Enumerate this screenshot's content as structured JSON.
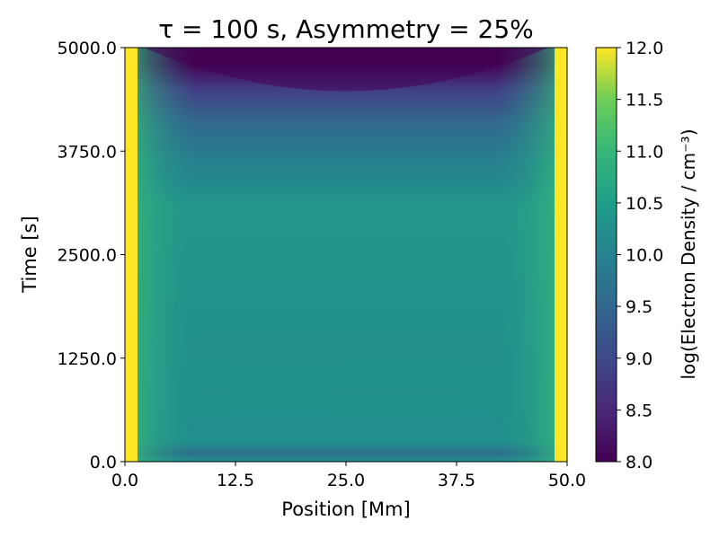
{
  "chart_data": {
    "type": "heatmap",
    "title": "τ = 100 s, Asymmetry = 25%",
    "xlabel": "Position [Mm]",
    "ylabel": "Time [s]",
    "xlim": [
      0,
      50
    ],
    "ylim": [
      0,
      5000
    ],
    "x_ticks": [
      "0.0",
      "12.5",
      "25.0",
      "37.5",
      "50.0"
    ],
    "y_ticks": [
      "0.0",
      "1250.0",
      "2500.0",
      "3750.0",
      "5000.0"
    ],
    "colorbar": {
      "label": "log(Electron Density / cm⁻³)",
      "range": [
        8.0,
        12.0
      ],
      "ticks": [
        "8.0",
        "8.5",
        "9.0",
        "9.5",
        "10.0",
        "10.5",
        "11.0",
        "11.5",
        "12.0"
      ],
      "colormap": "viridis"
    },
    "density_profile": {
      "time": [
        0,
        100,
        200,
        300,
        1250,
        2500,
        3200,
        3400,
        3750,
        4200,
        4600,
        5000
      ],
      "center_log_density": [
        10.3,
        9.6,
        10.1,
        10.2,
        10.3,
        10.4,
        10.35,
        10.3,
        10.1,
        9.1,
        8.3,
        8.15
      ],
      "footpoint_log_density": 12.0
    }
  }
}
